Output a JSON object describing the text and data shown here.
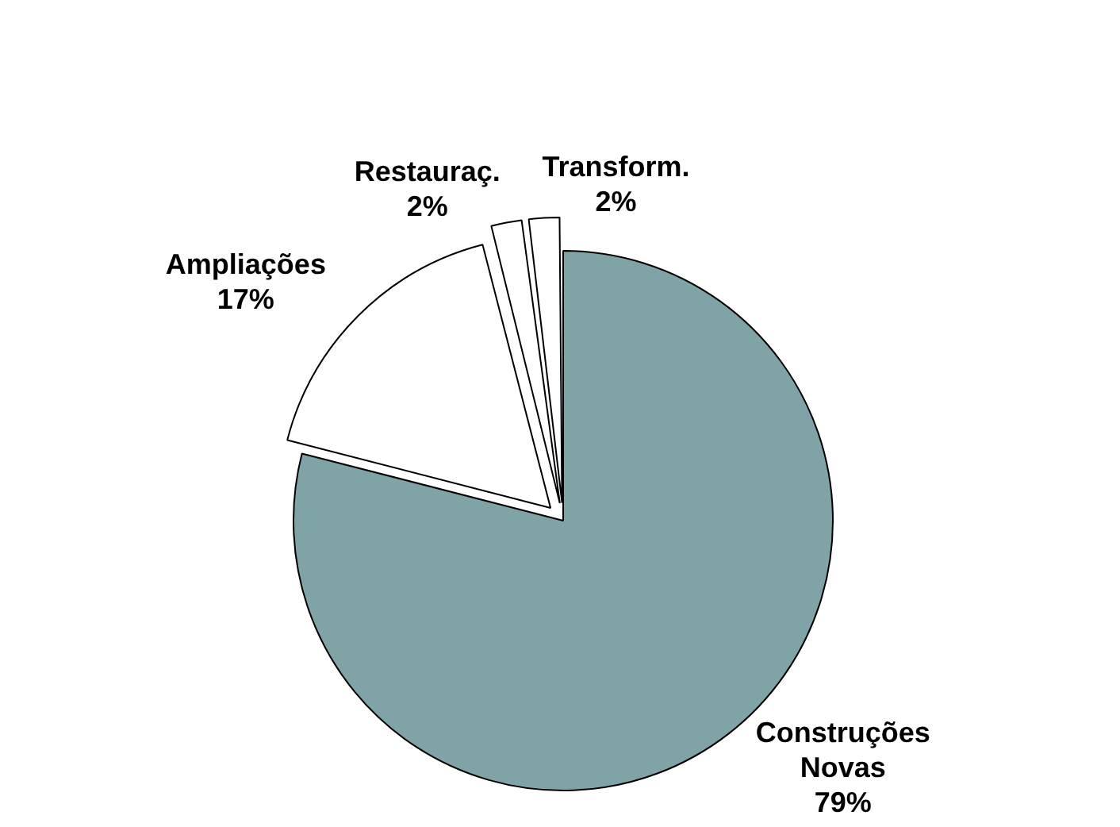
{
  "chart_data": {
    "type": "pie",
    "categories": [
      "Construções Novas",
      "Ampliações",
      "Restauraç.",
      "Transform."
    ],
    "values": [
      79,
      17,
      2,
      2
    ],
    "colors": [
      "#7fa3a6",
      "#ffffff",
      "#ffffff",
      "#ffffff"
    ],
    "value_labels": [
      "79%",
      "17%",
      "2%",
      "2%"
    ],
    "legend": false
  }
}
